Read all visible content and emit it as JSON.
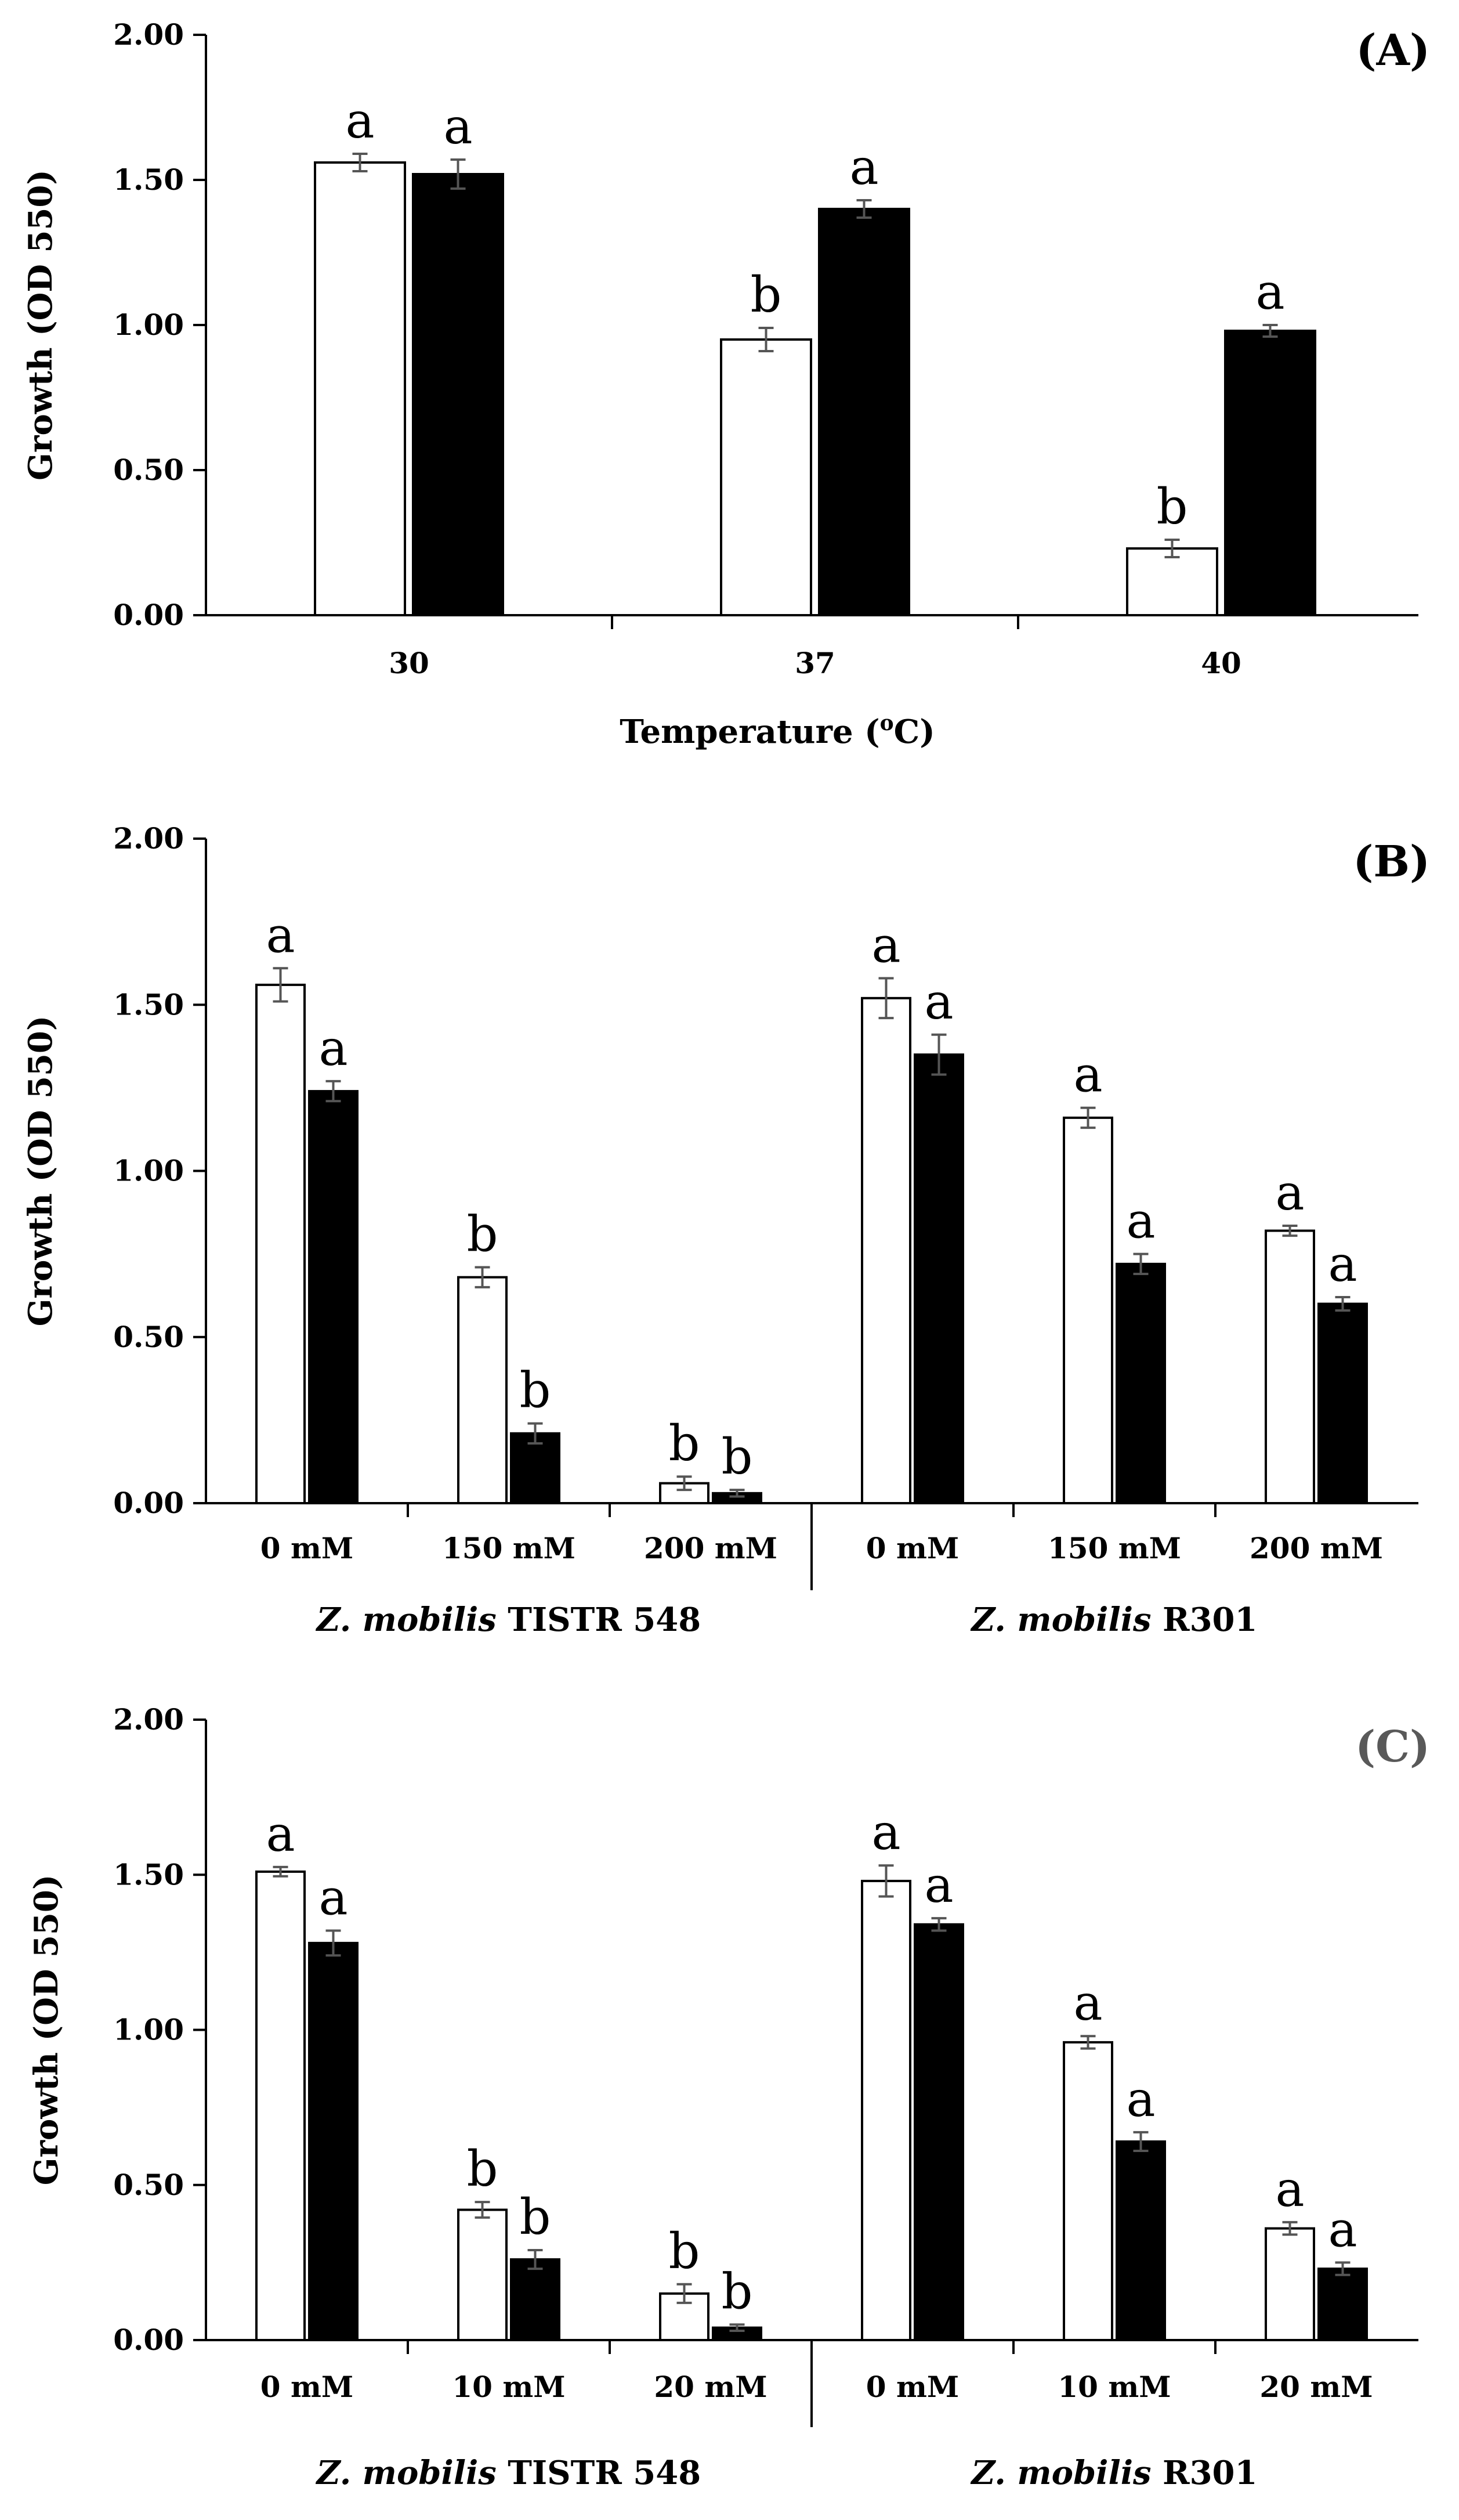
{
  "chart_data": [
    {
      "type": "bar",
      "panel_label": "(A)",
      "panel_label_color": "#000000",
      "ylabel": "Growth (OD 550)",
      "xlabel_parts": [
        "Temperature (",
        "o",
        "C)"
      ],
      "ylim": [
        0,
        2.0
      ],
      "yticks": [
        "0.00",
        "0.50",
        "1.00",
        "1.50",
        "2.00"
      ],
      "categories": [
        "30",
        "37",
        "40"
      ],
      "series": [
        {
          "name": "open bars",
          "fill": "#ffffff",
          "values": [
            1.56,
            0.95,
            0.23
          ],
          "errors": [
            0.03,
            0.04,
            0.03
          ],
          "letters": [
            "a",
            "b",
            "b"
          ]
        },
        {
          "name": "filled bars",
          "fill": "#000000",
          "values": [
            1.52,
            1.4,
            0.98
          ],
          "errors": [
            0.05,
            0.03,
            0.02
          ],
          "letters": [
            "a",
            "a",
            "a"
          ]
        }
      ]
    },
    {
      "type": "bar",
      "panel_label": "(B)",
      "panel_label_color": "#000000",
      "ylabel": "Growth (OD 550)",
      "ylim": [
        0,
        2.0
      ],
      "yticks": [
        "0.00",
        "0.50",
        "1.00",
        "1.50",
        "2.00"
      ],
      "categories": [
        "0 mM",
        "150 mM",
        "200 mM",
        "0 mM",
        "150 mM",
        "200 mM"
      ],
      "groups": [
        {
          "italic": "Z. mobilis",
          "rest": " TISTR 548"
        },
        {
          "italic": "Z. mobilis",
          "rest": " R301"
        }
      ],
      "series": [
        {
          "name": "open bars",
          "fill": "#ffffff",
          "values": [
            1.56,
            0.68,
            0.06,
            1.52,
            1.16,
            0.82
          ],
          "errors": [
            0.05,
            0.03,
            0.02,
            0.06,
            0.03,
            0.015
          ],
          "letters": [
            "a",
            "b",
            "b",
            "a",
            "a",
            "a"
          ]
        },
        {
          "name": "filled bars",
          "fill": "#000000",
          "values": [
            1.24,
            0.21,
            0.03,
            1.35,
            0.72,
            0.6
          ],
          "errors": [
            0.03,
            0.03,
            0.01,
            0.06,
            0.03,
            0.02
          ],
          "letters": [
            "a",
            "b",
            "b",
            "a",
            "a",
            "a"
          ]
        }
      ]
    },
    {
      "type": "bar",
      "panel_label": "(C)",
      "panel_label_color": "#595959",
      "ylabel": "Growth (OD 550)",
      "ylim": [
        0,
        2.0
      ],
      "yticks": [
        "0.00",
        "0.50",
        "1.00",
        "1.50",
        "2.00"
      ],
      "categories": [
        "0 mM",
        "10 mM",
        "20 mM",
        "0 mM",
        "10 mM",
        "20 mM"
      ],
      "groups": [
        {
          "italic": "Z. mobilis",
          "rest": " TISTR 548"
        },
        {
          "italic": "Z. mobilis",
          "rest": " R301"
        }
      ],
      "series": [
        {
          "name": "open bars",
          "fill": "#ffffff",
          "values": [
            1.51,
            0.42,
            0.15,
            1.48,
            0.96,
            0.36
          ],
          "errors": [
            0.015,
            0.025,
            0.03,
            0.05,
            0.02,
            0.02
          ],
          "letters": [
            "a",
            "b",
            "b",
            "a",
            "a",
            "a"
          ]
        },
        {
          "name": "filled bars",
          "fill": "#000000",
          "values": [
            1.28,
            0.26,
            0.04,
            1.34,
            0.64,
            0.23
          ],
          "errors": [
            0.04,
            0.03,
            0.01,
            0.02,
            0.03,
            0.02
          ],
          "letters": [
            "a",
            "b",
            "b",
            "a",
            "a",
            "a"
          ]
        }
      ]
    }
  ]
}
